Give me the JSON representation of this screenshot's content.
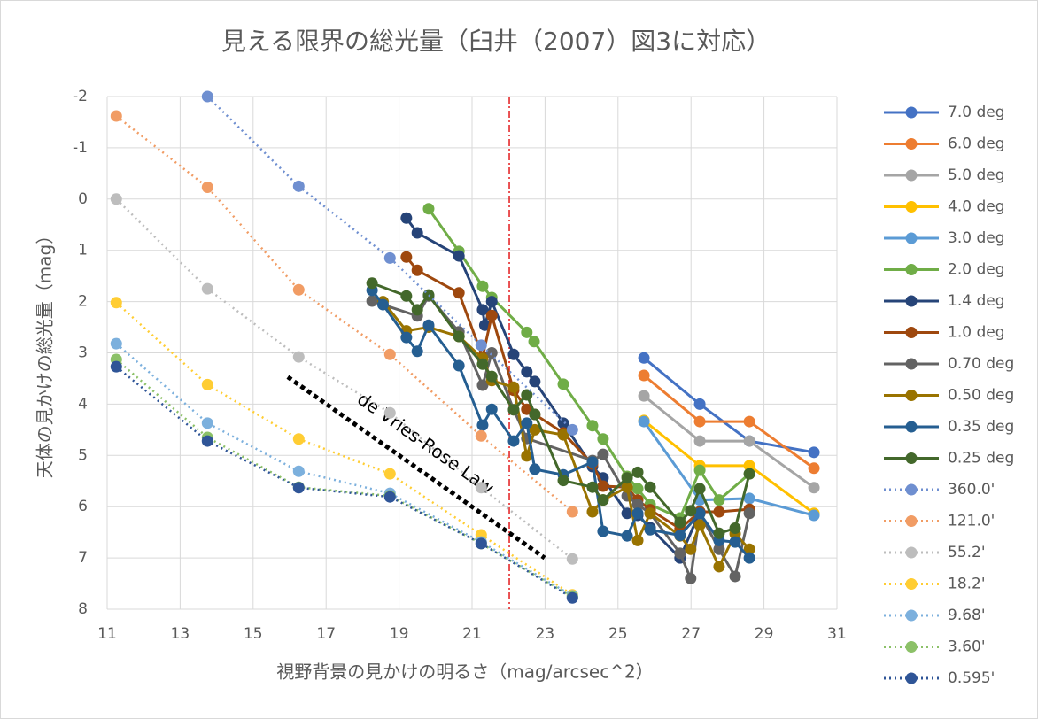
{
  "chart_data": {
    "type": "line",
    "title": "見える限界の総光量（臼井（2007）図3に対応）",
    "x_label": "視野背景の見かけの明るさ（mag/arcsec^2）",
    "y_label": "天体の見かけの総光量（mag）",
    "xlim": [
      11,
      31
    ],
    "xticks": [
      11,
      13,
      15,
      17,
      19,
      21,
      23,
      25,
      27,
      29,
      31
    ],
    "ylim": [
      -2,
      8
    ],
    "yticks": [
      -2,
      -1,
      0,
      1,
      2,
      3,
      4,
      5,
      6,
      7,
      8
    ],
    "y_inverted": true,
    "grid": true,
    "legend": "right",
    "reference_line": {
      "x": 22.02,
      "color": "#e31a1c"
    },
    "annotations": [
      {
        "text": "de Vries-Rose Law",
        "x": [
          15.95,
          22.99
        ],
        "y": [
          3.47,
          7.0
        ]
      }
    ],
    "series": [
      {
        "name": "7.0 deg",
        "color": "#4472c4",
        "style": "solid",
        "x": [
          25.71,
          27.24,
          28.6,
          30.37
        ],
        "values": [
          3.1,
          4.0,
          4.72,
          4.94
        ]
      },
      {
        "name": "6.0 deg",
        "color": "#ed7d31",
        "style": "solid",
        "x": [
          25.71,
          27.24,
          28.6,
          30.37
        ],
        "values": [
          3.44,
          4.34,
          4.34,
          5.25
        ]
      },
      {
        "name": "5.0 deg",
        "color": "#a5a5a5",
        "style": "solid",
        "x": [
          25.71,
          27.24,
          28.6,
          30.37
        ],
        "values": [
          3.84,
          4.72,
          4.72,
          5.63
        ]
      },
      {
        "name": "4.0 deg",
        "color": "#ffc000",
        "style": "solid",
        "x": [
          25.71,
          27.24,
          28.6,
          30.37
        ],
        "values": [
          4.32,
          5.2,
          5.2,
          6.13
        ]
      },
      {
        "name": "3.0 deg",
        "color": "#5b9bd5",
        "style": "solid",
        "x": [
          25.71,
          27.24,
          28.6,
          30.37
        ],
        "values": [
          4.34,
          5.87,
          5.84,
          6.17
        ]
      },
      {
        "name": "2.0 deg",
        "color": "#70ad47",
        "style": "solid",
        "x": [
          19.81,
          20.64,
          21.29,
          21.54,
          22.5,
          22.7,
          23.5,
          24.3,
          24.59,
          25.25,
          25.54,
          25.88,
          26.7,
          27.24,
          27.77,
          28.6
        ],
        "values": [
          0.19,
          1.02,
          1.7,
          1.92,
          2.6,
          2.78,
          3.61,
          4.42,
          4.68,
          5.41,
          5.65,
          5.96,
          6.22,
          5.29,
          5.87,
          5.36
        ]
      },
      {
        "name": "1.4 deg",
        "color": "#264478",
        "style": "solid",
        "x": [
          19.2,
          19.5,
          20.64,
          21.29,
          21.35,
          21.54,
          22.14,
          22.5,
          22.72,
          23.5,
          24.3,
          24.59,
          25.25,
          25.54,
          25.88,
          26.7,
          27.24
        ],
        "values": [
          0.37,
          0.66,
          1.11,
          2.16,
          2.46,
          2.0,
          3.03,
          3.37,
          3.56,
          4.37,
          5.22,
          5.44,
          6.13,
          6.17,
          6.41,
          7.0,
          6.1
        ]
      },
      {
        "name": "1.0 deg",
        "color": "#9e480e",
        "style": "solid",
        "x": [
          19.2,
          19.5,
          20.64,
          21.29,
          21.54,
          22.14,
          22.5,
          22.72,
          23.5,
          24.3,
          24.59,
          25.25,
          25.54,
          25.88,
          26.7,
          27.24,
          27.77,
          28.6
        ],
        "values": [
          1.13,
          1.39,
          1.83,
          3.08,
          2.27,
          3.73,
          4.1,
          4.2,
          4.56,
          5.17,
          5.6,
          5.62,
          5.87,
          6.06,
          6.43,
          6.1,
          6.1,
          6.05
        ]
      },
      {
        "name": "0.70 deg",
        "color": "#636363",
        "style": "solid",
        "x": [
          18.26,
          19.5,
          19.81,
          20.64,
          21.29,
          21.54,
          22.14,
          22.5,
          24.3,
          24.59,
          25.25,
          25.54,
          25.88,
          26.7,
          26.99,
          27.24,
          27.77,
          28.21,
          28.6
        ],
        "values": [
          1.99,
          2.28,
          1.89,
          2.59,
          3.63,
          3.0,
          4.11,
          4.67,
          5.1,
          4.98,
          5.79,
          5.96,
          6.13,
          6.91,
          7.4,
          6.13,
          6.83,
          7.36,
          6.13
        ]
      },
      {
        "name": "0.50 deg",
        "color": "#997300",
        "style": "solid",
        "x": [
          18.56,
          19.2,
          19.81,
          20.64,
          21.29,
          21.54,
          22.14,
          22.5,
          22.72,
          23.5,
          24.3,
          24.59,
          25.25,
          25.54,
          25.88,
          26.7,
          26.99,
          27.24,
          27.77,
          28.21,
          28.6
        ],
        "values": [
          2.0,
          2.57,
          2.5,
          2.68,
          3.11,
          3.54,
          3.67,
          5.01,
          4.5,
          4.6,
          6.1,
          5.87,
          5.62,
          6.66,
          6.13,
          6.57,
          6.83,
          6.36,
          7.17,
          6.53,
          6.83
        ]
      },
      {
        "name": "0.35 deg",
        "color": "#255e91",
        "style": "solid",
        "x": [
          18.26,
          18.56,
          19.2,
          19.5,
          19.81,
          20.64,
          21.29,
          21.54,
          22.14,
          22.5,
          22.72,
          23.5,
          24.3,
          24.59,
          25.25,
          25.54,
          25.88,
          26.7,
          27.24,
          27.77,
          28.21,
          28.6
        ],
        "values": [
          1.78,
          2.06,
          2.7,
          2.97,
          2.46,
          3.25,
          4.41,
          4.1,
          4.72,
          4.37,
          5.27,
          5.38,
          5.13,
          6.48,
          6.57,
          6.13,
          6.45,
          6.56,
          6.13,
          6.66,
          6.69,
          7.0
        ]
      },
      {
        "name": "0.25 deg",
        "color": "#43682b",
        "style": "solid",
        "x": [
          18.26,
          19.2,
          19.5,
          19.81,
          20.64,
          21.29,
          21.54,
          22.14,
          22.5,
          22.72,
          23.5,
          24.3,
          24.59,
          25.25,
          25.54,
          25.88,
          26.7,
          26.99,
          27.24,
          27.77,
          28.21,
          28.6
        ],
        "values": [
          1.64,
          1.89,
          2.16,
          1.87,
          2.68,
          3.22,
          3.46,
          4.11,
          3.82,
          4.2,
          5.49,
          5.62,
          5.87,
          5.44,
          5.33,
          5.62,
          6.31,
          6.08,
          5.65,
          6.52,
          6.42,
          5.36
        ]
      },
      {
        "name": "360.0'",
        "color": "#6f8fd0",
        "style": "dotted",
        "x": [
          13.75,
          16.25,
          18.75,
          21.25,
          23.75
        ],
        "values": [
          -2.0,
          -0.25,
          1.15,
          2.85,
          4.5
        ]
      },
      {
        "name": "121.0'",
        "color": "#f19c64",
        "style": "dotted",
        "x": [
          11.25,
          13.75,
          16.25,
          18.75,
          21.25,
          23.75
        ],
        "values": [
          -1.62,
          -0.23,
          1.77,
          3.03,
          4.62,
          6.1
        ]
      },
      {
        "name": "55.2'",
        "color": "#bdbdbd",
        "style": "dotted",
        "x": [
          11.25,
          13.75,
          16.25,
          18.75,
          21.25,
          23.75
        ],
        "values": [
          0.0,
          1.75,
          3.08,
          4.17,
          5.63,
          7.02
        ]
      },
      {
        "name": "18.2'",
        "color": "#ffcd33",
        "style": "dotted",
        "x": [
          11.25,
          13.75,
          16.25,
          18.75,
          21.25,
          23.75
        ],
        "values": [
          2.02,
          3.62,
          4.68,
          5.36,
          6.55,
          7.72
        ]
      },
      {
        "name": "9.68'",
        "color": "#7cb0dd",
        "style": "dotted",
        "x": [
          11.25,
          13.75,
          16.25,
          18.75,
          21.25,
          23.75
        ],
        "values": [
          2.82,
          4.37,
          5.31,
          5.74,
          6.69,
          7.74
        ]
      },
      {
        "name": "3.60'",
        "color": "#8cc168",
        "style": "dotted",
        "x": [
          11.25,
          13.75,
          16.25,
          18.75,
          21.25,
          23.75
        ],
        "values": [
          3.13,
          4.65,
          5.62,
          5.79,
          6.72,
          7.76
        ]
      },
      {
        "name": "0.595'",
        "color": "#2f5597",
        "style": "dotted",
        "x": [
          11.25,
          13.75,
          16.25,
          18.75,
          21.25,
          23.75
        ],
        "values": [
          3.27,
          4.72,
          5.63,
          5.81,
          6.72,
          7.78
        ]
      }
    ]
  }
}
